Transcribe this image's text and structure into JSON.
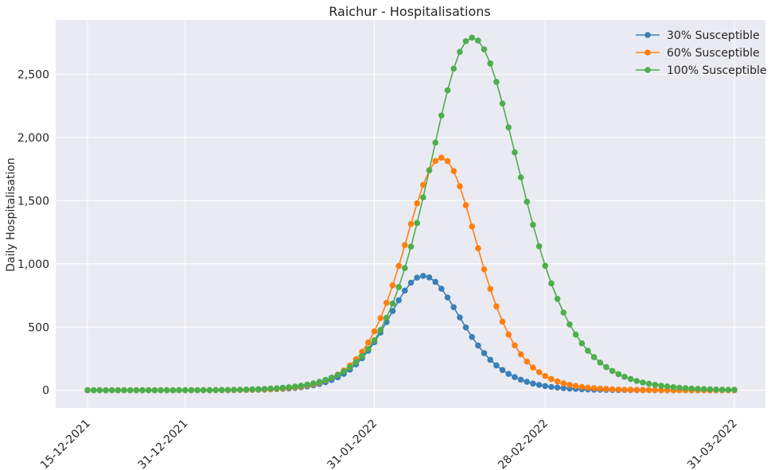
{
  "chart_data": {
    "type": "line",
    "title": "Raichur - Hospitalisations",
    "xlabel": "",
    "ylabel": "Daily Hospitalisation",
    "x_start": "15-12-2021",
    "x_end": "31-03-2022",
    "x_ticks": [
      {
        "date": "15-12-2021",
        "label": "15-12-2021"
      },
      {
        "date": "31-12-2021",
        "label": "31-12-2021"
      },
      {
        "date": "31-01-2022",
        "label": "31-01-2022"
      },
      {
        "date": "28-02-2022",
        "label": "28-02-2022"
      },
      {
        "date": "31-03-2022",
        "label": "31-03-2022"
      }
    ],
    "ylim": [
      -140,
      2930
    ],
    "y_ticks": [
      {
        "value": 0,
        "label": "0"
      },
      {
        "value": 500,
        "label": "500"
      },
      {
        "value": 1000,
        "label": "1,000"
      },
      {
        "value": 1500,
        "label": "1,500"
      },
      {
        "value": 2000,
        "label": "2,000"
      },
      {
        "value": 2500,
        "label": "2,500"
      }
    ],
    "grid": true,
    "legend_position": "top-right",
    "series": [
      {
        "name": "30% Susceptible",
        "color": "#3a7fb8",
        "peak_date": "08-02-2022",
        "peak_value": 905,
        "rise_scale_days": 8.0,
        "fall_scale_days": 8.6
      },
      {
        "name": "60% Susceptible",
        "color": "#ff7f0e",
        "peak_date": "11-02-2022",
        "peak_value": 1840,
        "rise_scale_days": 8.4,
        "fall_scale_days": 8.2
      },
      {
        "name": "100% Susceptible",
        "color": "#4cae4c",
        "peak_date": "16-02-2022",
        "peak_value": 2790,
        "rise_scale_days": 9.8,
        "fall_scale_days": 10.8
      }
    ]
  },
  "style": {
    "plot_background": "#eaeaf2",
    "grid_color": "#ffffff"
  }
}
